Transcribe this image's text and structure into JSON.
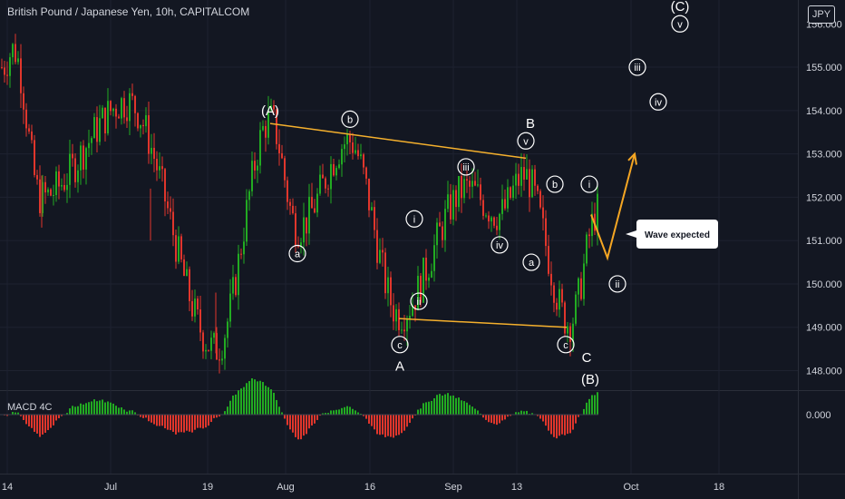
{
  "header": {
    "symbol_title": "British Pound / Japanese Yen, 10h, CAPITALCOM",
    "currency_badge": "JPY"
  },
  "macd_label": "MACD 4C",
  "callout_text": "Wave expected",
  "colors": {
    "background": "#131722",
    "bull": "#22ab22",
    "bear": "#e0362c",
    "trendline": "#f5b02d",
    "grid": "#1e2230",
    "text": "#d1d4dc"
  },
  "chart_data": [
    {
      "type": "candlestick",
      "title": "British Pound / Japanese Yen, 10h, CAPITALCOM",
      "y_axis_ticks": [
        148.0,
        149.0,
        150.0,
        151.0,
        152.0,
        153.0,
        154.0,
        155.0
      ],
      "y_axis_top_partial_label": "156.000",
      "ylim": [
        147.55,
        156.55
      ],
      "x_axis_ticks": [
        "14",
        "Jul",
        "19",
        "Aug",
        "16",
        "Sep",
        "13",
        "Oct",
        "18"
      ],
      "price_path_approx": [
        {
          "label": "Jun 14",
          "value": 155.0
        },
        {
          "label": "mid Jun high",
          "value": 155.4
        },
        {
          "label": "late Jun",
          "value": 152.0
        },
        {
          "label": "Jul",
          "value": 154.2
        },
        {
          "label": "Jul 19 low",
          "value": 148.5
        },
        {
          "label": "(A) ~Jul 29",
          "value": 153.8
        },
        {
          "label": "a",
          "value": 151.3
        },
        {
          "label": "b ~Aug 11",
          "value": 153.3
        },
        {
          "label": "A / c ~Aug 20",
          "value": 149.3
        },
        {
          "label": "iii",
          "value": 152.2
        },
        {
          "label": "iv",
          "value": 151.6
        },
        {
          "label": "B / v ~Sep 13",
          "value": 152.5
        },
        {
          "label": "C / c ~Sep 21",
          "value": 149.1
        },
        {
          "label": "latest ~Sep 25",
          "value": 151.7
        }
      ],
      "projection_path": [
        151.6,
        150.6,
        153.0
      ],
      "wave_labels": [
        {
          "text": "(A)",
          "price": 154.0
        },
        {
          "text": "b",
          "price": 153.8
        },
        {
          "text": "a",
          "price": 150.7
        },
        {
          "text": "B",
          "price": 153.7
        },
        {
          "text": "v",
          "price": 153.3
        },
        {
          "text": "iii",
          "price": 152.7
        },
        {
          "text": "i",
          "price": 151.5
        },
        {
          "text": "iv",
          "price": 150.9
        },
        {
          "text": "ii",
          "price": 149.6
        },
        {
          "text": "c",
          "price": 148.6
        },
        {
          "text": "A",
          "price": 148.1
        },
        {
          "text": "b",
          "price": 152.3
        },
        {
          "text": "a",
          "price": 150.5
        },
        {
          "text": "i",
          "price": 152.3
        },
        {
          "text": "c",
          "price": 148.6
        },
        {
          "text": "C",
          "price": 148.3
        },
        {
          "text": "(B)",
          "price": 147.8
        },
        {
          "text": "ii",
          "price": 150.0
        },
        {
          "text": "iii",
          "price": 155.0
        },
        {
          "text": "iv",
          "price": 154.2
        },
        {
          "text": "v",
          "price": 156.0
        },
        {
          "text": "(C)",
          "price": 156.4
        }
      ],
      "trendlines": [
        {
          "from": 153.7,
          "to": 152.9
        },
        {
          "from": 149.2,
          "to": 149.0
        }
      ],
      "annotation": "Wave expected"
    },
    {
      "type": "histogram",
      "title": "MACD 4C",
      "y_axis_ticks": [
        "0.000"
      ],
      "positive_color": "#22ab22",
      "negative_color": "#e0362c"
    }
  ]
}
